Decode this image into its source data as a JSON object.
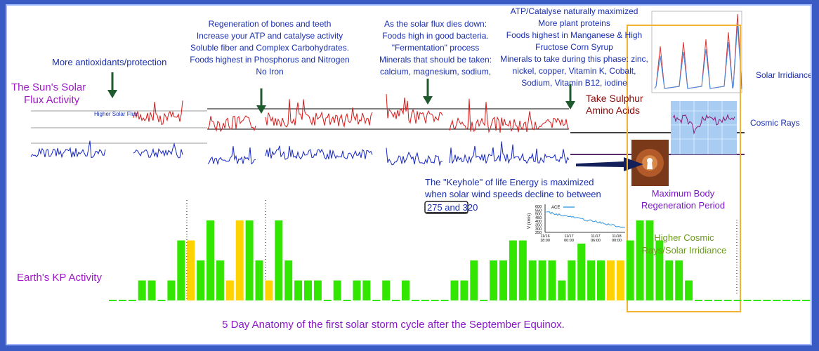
{
  "annotations": {
    "antioxidants": "More antioxidants/protection",
    "regeneration": [
      "Regeneration of bones and teeth",
      "Increase your ATP and catalyse activity",
      "Soluble fiber and Complex Carbohydrates.",
      "Foods highest in Phosphorus and Nitrogen",
      "No Iron"
    ],
    "flux_dies": [
      "As the solar flux dies down:",
      "Foods high in good bacteria.",
      "\"Fermentation\" process",
      "Minerals that should be taken:",
      "calcium, magnesium, sodium,"
    ],
    "atp_max": [
      "ATP/Catalyse naturally maximized",
      "More plant proteins",
      "Foods highest in Manganese & High",
      "Fructose Corn Syrup",
      "Minerals to take during this phase: zinc,",
      "nickel, copper, Vitamin K, Cobalt,",
      "Sodium, Vitamin B12, iodine"
    ],
    "sulphur": [
      "Take Sulphur",
      "Amino Acids"
    ],
    "keyhole": [
      "The \"Keyhole\" of life Energy is maximized",
      "when solar wind speeds decline to between"
    ],
    "keyhole_range": "275 and 320",
    "max_regen": [
      "Maximum Body",
      "Regeneration Period"
    ],
    "higher_cosmic": [
      "Higher Cosmic",
      "Rays/Solar Irridiance"
    ]
  },
  "labels": {
    "solar_flux": [
      "The Sun's Solar",
      "Flux Activity"
    ],
    "higher_solar_flux": "Higher Solar Flux",
    "earth_kp": "Earth's KP Activity",
    "solar_irridiance": "Solar Irridiance",
    "cosmic_rays": "Cosmic Rays"
  },
  "ace_chart": {
    "ylabel": "V (km/s)",
    "yticks": [
      "600",
      "550",
      "500",
      "450",
      "400",
      "350",
      "300",
      "250"
    ],
    "legend": "ACE",
    "xticks": [
      [
        "11/16",
        "18:00"
      ],
      [
        "11/17",
        "00:00"
      ],
      [
        "11/17",
        "06:00"
      ],
      [
        "11/18",
        "00:00"
      ]
    ]
  },
  "kp_bars": {
    "values": [
      0,
      0,
      0,
      1,
      1,
      0,
      1,
      3,
      3,
      2,
      4,
      2,
      1,
      4,
      4,
      2,
      1,
      4,
      2,
      1,
      1,
      1,
      0,
      1,
      0,
      1,
      1,
      0,
      1,
      0,
      1,
      0,
      0,
      0,
      0,
      1,
      1,
      2,
      0,
      2,
      2,
      3,
      3,
      2,
      2,
      2,
      1,
      2,
      3,
      2,
      2,
      2,
      2,
      3,
      4,
      4,
      3,
      2,
      2,
      1,
      0,
      0,
      0,
      0,
      0,
      0,
      0,
      0,
      0,
      0,
      0,
      0,
      1,
      0,
      0,
      0,
      0,
      0,
      1,
      0,
      1,
      0,
      0,
      0,
      0
    ],
    "highlight": [
      8,
      12,
      13,
      16,
      51,
      52
    ],
    "colors": {
      "normal": "#33e600",
      "highlight": "#ffd200"
    }
  },
  "caption": "5 Day Anatomy of the first solar storm cycle after the September Equinox."
}
